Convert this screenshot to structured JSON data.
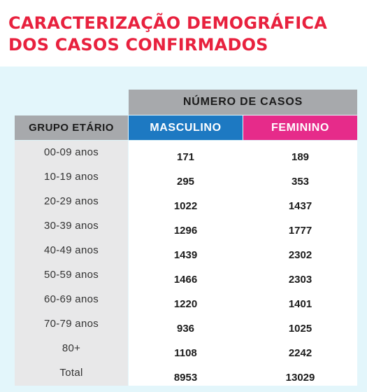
{
  "title": "CARACTERIZAÇÃO DEMOGRÁFICA DOS CASOS CONFIRMADOS",
  "colors": {
    "title": "#e8213e",
    "background": "#e3f6fb",
    "header_gray": "#a7a9ac",
    "masculino": "#1d79c2",
    "feminino": "#e62b8a"
  },
  "table": {
    "group_header": "NÚMERO DE CASOS",
    "age_header": "GRUPO ETÁRIO",
    "male_header": "MASCULINO",
    "female_header": "FEMININO",
    "rows": [
      {
        "age": "00-09 anos",
        "masculino": "171",
        "feminino": "189"
      },
      {
        "age": "10-19 anos",
        "masculino": "295",
        "feminino": "353"
      },
      {
        "age": "20-29 anos",
        "masculino": "1022",
        "feminino": "1437"
      },
      {
        "age": "30-39 anos",
        "masculino": "1296",
        "feminino": "1777"
      },
      {
        "age": "40-49 anos",
        "masculino": "1439",
        "feminino": "2302"
      },
      {
        "age": "50-59 anos",
        "masculino": "1466",
        "feminino": "2303"
      },
      {
        "age": "60-69 anos",
        "masculino": "1220",
        "feminino": "1401"
      },
      {
        "age": "70-79 anos",
        "masculino": "936",
        "feminino": "1025"
      },
      {
        "age": "80+",
        "masculino": "1108",
        "feminino": "2242"
      },
      {
        "age": "Total",
        "masculino": "8953",
        "feminino": "13029"
      }
    ]
  }
}
